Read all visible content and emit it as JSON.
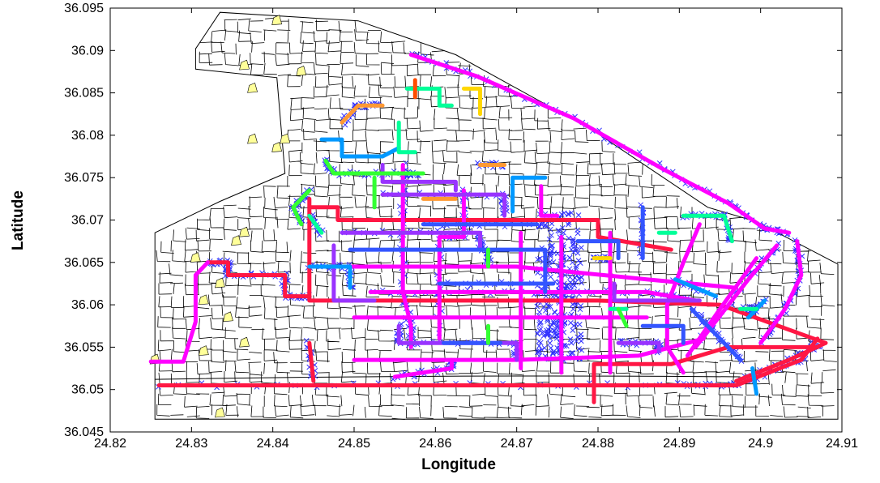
{
  "chart_data": {
    "type": "scatter",
    "title": "",
    "xlabel": "Longitude",
    "ylabel": "Latitude",
    "xlim": [
      24.82,
      24.91
    ],
    "ylim": [
      36.045,
      36.095
    ],
    "xticks": [
      "24.82",
      "24.83",
      "24.84",
      "24.85",
      "24.86",
      "24.87",
      "24.88",
      "24.89",
      "24.9",
      "24.91"
    ],
    "yticks": [
      "36.045",
      "36.05",
      "36.055",
      "36.06",
      "36.065",
      "36.07",
      "36.075",
      "36.08",
      "36.085",
      "36.09",
      "36.095"
    ],
    "grid": false,
    "legend": "none",
    "colors": {
      "street_network": "#000000",
      "building_patch": "#FFFF99",
      "gps_points": "#3333FF"
    },
    "series": [
      {
        "color": "#FF1744",
        "values": [
          [
            24.826,
            36.0505
          ],
          [
            24.86,
            36.0505
          ],
          [
            24.89,
            36.0505
          ],
          [
            24.897,
            36.0505
          ],
          [
            24.905,
            36.0535
          ],
          [
            24.907,
            36.056
          ]
        ]
      },
      {
        "color": "#FF1744",
        "values": [
          [
            24.8445,
            36.0725
          ],
          [
            24.8445,
            36.0605
          ],
          [
            24.86,
            36.0605
          ],
          [
            24.88,
            36.0605
          ],
          [
            24.895,
            36.06
          ],
          [
            24.908,
            36.0555
          ]
        ]
      },
      {
        "color": "#FF1744",
        "values": [
          [
            24.8445,
            36.061
          ],
          [
            24.8415,
            36.061
          ],
          [
            24.8415,
            36.0635
          ],
          [
            24.8345,
            36.0635
          ],
          [
            24.8345,
            36.065
          ],
          [
            24.832,
            36.065
          ]
        ]
      },
      {
        "color": "#FF1744",
        "values": [
          [
            24.8445,
            36.0715
          ],
          [
            24.848,
            36.0715
          ],
          [
            24.848,
            36.07
          ],
          [
            24.88,
            36.07
          ],
          [
            24.88,
            36.068
          ],
          [
            24.889,
            36.0665
          ]
        ]
      },
      {
        "color": "#FF1744",
        "values": [
          [
            24.8445,
            36.0555
          ],
          [
            24.845,
            36.051
          ]
        ]
      },
      {
        "color": "#FF1744",
        "values": [
          [
            24.8795,
            36.0485
          ],
          [
            24.8795,
            36.053
          ],
          [
            24.889,
            36.053
          ],
          [
            24.896,
            36.055
          ],
          [
            24.907,
            36.055
          ]
        ]
      },
      {
        "color": "#FF1744",
        "values": [
          [
            24.897,
            36.051
          ],
          [
            24.9035,
            36.0535
          ],
          [
            24.908,
            36.0555
          ]
        ]
      },
      {
        "color": "#FF00FF",
        "values": [
          [
            24.825,
            36.0533
          ],
          [
            24.829,
            36.0533
          ],
          [
            24.8305,
            36.058
          ],
          [
            24.8305,
            36.0635
          ],
          [
            24.832,
            36.065
          ]
        ]
      },
      {
        "color": "#FF00FF",
        "values": [
          [
            24.857,
            36.0895
          ],
          [
            24.865,
            36.087
          ],
          [
            24.877,
            36.082
          ],
          [
            24.888,
            36.076
          ],
          [
            24.896,
            36.072
          ],
          [
            24.9005,
            36.069
          ],
          [
            24.9035,
            36.0685
          ]
        ]
      },
      {
        "color": "#FF00FF",
        "values": [
          [
            24.85,
            36.0535
          ],
          [
            24.87,
            36.0535
          ],
          [
            24.885,
            36.054
          ],
          [
            24.893,
            36.056
          ]
        ]
      },
      {
        "color": "#FF00FF",
        "values": [
          [
            24.855,
            36.0515
          ],
          [
            24.862,
            36.0525
          ],
          [
            24.862,
            36.0535
          ]
        ]
      },
      {
        "color": "#FF00FF",
        "values": [
          [
            24.845,
            36.0645
          ],
          [
            24.858,
            36.0645
          ],
          [
            24.87,
            36.0645
          ],
          [
            24.886,
            36.063
          ],
          [
            24.897,
            36.062
          ]
        ]
      },
      {
        "color": "#FF00FF",
        "values": [
          [
            24.852,
            36.0615
          ],
          [
            24.871,
            36.0615
          ],
          [
            24.886,
            36.0615
          ],
          [
            24.892,
            36.0605
          ]
        ]
      },
      {
        "color": "#FF00FF",
        "values": [
          [
            24.85,
            36.0585
          ],
          [
            24.87,
            36.0585
          ],
          [
            24.88,
            36.0585
          ],
          [
            24.886,
            36.0585
          ]
        ]
      },
      {
        "color": "#FF00FF",
        "values": [
          [
            24.856,
            36.0765
          ],
          [
            24.856,
            36.07
          ],
          [
            24.856,
            36.0615
          ],
          [
            24.857,
            36.0575
          ],
          [
            24.857,
            36.055
          ]
        ]
      },
      {
        "color": "#FF00FF",
        "values": [
          [
            24.8705,
            36.0685
          ],
          [
            24.8705,
            36.0525
          ]
        ]
      },
      {
        "color": "#FF00FF",
        "values": [
          [
            24.8755,
            36.068
          ],
          [
            24.8755,
            36.052
          ]
        ]
      },
      {
        "color": "#FF00FF",
        "values": [
          [
            24.8815,
            36.0685
          ],
          [
            24.8815,
            36.052
          ]
        ]
      },
      {
        "color": "#FF00FF",
        "values": [
          [
            24.8635,
            36.0735
          ],
          [
            24.8635,
            36.068
          ],
          [
            24.8605,
            36.068
          ],
          [
            24.8605,
            36.056
          ]
        ]
      },
      {
        "color": "#FF00FF",
        "values": [
          [
            24.8925,
            36.0695
          ],
          [
            24.8905,
            36.065
          ],
          [
            24.8885,
            36.06
          ],
          [
            24.8885,
            36.055
          ],
          [
            24.8905,
            36.052
          ]
        ]
      },
      {
        "color": "#FF00FF",
        "values": [
          [
            24.902,
            36.067
          ],
          [
            24.8985,
            36.063
          ],
          [
            24.892,
            36.055
          ]
        ]
      },
      {
        "color": "#FF00FF",
        "values": [
          [
            24.8995,
            36.0655
          ],
          [
            24.895,
            36.0595
          ],
          [
            24.891,
            36.054
          ]
        ]
      },
      {
        "color": "#FF00FF",
        "values": [
          [
            24.9045,
            36.0675
          ],
          [
            24.905,
            36.0635
          ],
          [
            24.903,
            36.0595
          ],
          [
            24.9,
            36.0555
          ]
        ]
      },
      {
        "color": "#FF00FF",
        "values": [
          [
            24.873,
            36.074
          ],
          [
            24.873,
            36.0705
          ],
          [
            24.875,
            36.0705
          ]
        ]
      },
      {
        "color": "#9933FF",
        "values": [
          [
            24.8535,
            36.073
          ],
          [
            24.8685,
            36.073
          ],
          [
            24.8685,
            36.0705
          ]
        ]
      },
      {
        "color": "#9933FF",
        "values": [
          [
            24.8475,
            36.067
          ],
          [
            24.8475,
            36.0605
          ],
          [
            24.8525,
            36.0605
          ]
        ]
      },
      {
        "color": "#9933FF",
        "values": [
          [
            24.8485,
            36.0685
          ],
          [
            24.8655,
            36.0685
          ],
          [
            24.8655,
            36.0665
          ]
        ]
      },
      {
        "color": "#9933FF",
        "values": [
          [
            24.8535,
            36.0765
          ],
          [
            24.8535,
            36.0745
          ],
          [
            24.8625,
            36.0745
          ],
          [
            24.8625,
            36.0735
          ]
        ]
      },
      {
        "color": "#9933FF",
        "values": [
          [
            24.8555,
            36.0575
          ],
          [
            24.8555,
            36.0555
          ],
          [
            24.87,
            36.0555
          ],
          [
            24.87,
            36.0535
          ]
        ]
      },
      {
        "color": "#9933FF",
        "values": [
          [
            24.882,
            36.0625
          ],
          [
            24.882,
            36.0605
          ],
          [
            24.8925,
            36.0605
          ]
        ]
      },
      {
        "color": "#9933FF",
        "values": [
          [
            24.8825,
            36.0555
          ],
          [
            24.8875,
            36.0555
          ],
          [
            24.8875,
            36.0545
          ]
        ]
      },
      {
        "color": "#3355FF",
        "values": [
          [
            24.8495,
            36.0665
          ],
          [
            24.8735,
            36.0665
          ],
          [
            24.8735,
            36.0615
          ]
        ]
      },
      {
        "color": "#3355FF",
        "values": [
          [
            24.8605,
            36.0625
          ],
          [
            24.8745,
            36.0625
          ]
        ]
      },
      {
        "color": "#3355FF",
        "values": [
          [
            24.8775,
            36.0675
          ],
          [
            24.8825,
            36.0675
          ],
          [
            24.8825,
            36.0655
          ]
        ]
      },
      {
        "color": "#3355FF",
        "values": [
          [
            24.8855,
            36.0715
          ],
          [
            24.8855,
            36.0655
          ]
        ]
      },
      {
        "color": "#3355FF",
        "values": [
          [
            24.8855,
            36.0575
          ],
          [
            24.8905,
            36.0575
          ],
          [
            24.8905,
            36.0555
          ]
        ]
      },
      {
        "color": "#3355FF",
        "values": [
          [
            24.8915,
            36.0595
          ],
          [
            24.8955,
            36.0555
          ],
          [
            24.8975,
            36.0535
          ]
        ]
      },
      {
        "color": "#3355FF",
        "values": [
          [
            24.861,
            36.0555
          ],
          [
            24.868,
            36.0555
          ]
        ]
      },
      {
        "color": "#3355FF",
        "values": [
          [
            24.8585,
            36.0695
          ],
          [
            24.8725,
            36.0695
          ]
        ]
      },
      {
        "color": "#0099FF",
        "values": [
          [
            24.846,
            36.0795
          ],
          [
            24.8485,
            36.0795
          ],
          [
            24.8485,
            36.0775
          ],
          [
            24.8535,
            36.0775
          ],
          [
            24.8555,
            36.0785
          ]
        ]
      },
      {
        "color": "#0099FF",
        "values": [
          [
            24.8445,
            36.0645
          ],
          [
            24.8495,
            36.0645
          ],
          [
            24.8495,
            36.062
          ]
        ]
      },
      {
        "color": "#0099FF",
        "values": [
          [
            24.8695,
            36.071
          ],
          [
            24.8695,
            36.075
          ],
          [
            24.8735,
            36.075
          ]
        ]
      },
      {
        "color": "#0099FF",
        "values": [
          [
            24.8895,
            36.063
          ],
          [
            24.8945,
            36.061
          ]
        ]
      },
      {
        "color": "#0099FF",
        "values": [
          [
            24.899,
            36.0525
          ],
          [
            24.8995,
            36.0495
          ]
        ]
      },
      {
        "color": "#0099FF",
        "values": [
          [
            24.9005,
            36.0605
          ],
          [
            24.8985,
            36.0585
          ]
        ]
      },
      {
        "color": "#00FF99",
        "values": [
          [
            24.8565,
            36.0855
          ],
          [
            24.8605,
            36.0855
          ],
          [
            24.8605,
            36.0835
          ],
          [
            24.862,
            36.0835
          ]
        ]
      },
      {
        "color": "#00FF99",
        "values": [
          [
            24.846,
            36.0685
          ],
          [
            24.8445,
            36.0705
          ]
        ]
      },
      {
        "color": "#00FF99",
        "values": [
          [
            24.8875,
            36.0685
          ],
          [
            24.8895,
            36.0685
          ]
        ]
      },
      {
        "color": "#00FF99",
        "values": [
          [
            24.8905,
            36.0705
          ],
          [
            24.8955,
            36.0705
          ],
          [
            24.8965,
            36.0675
          ]
        ]
      },
      {
        "color": "#00FF99",
        "values": [
          [
            24.8815,
            36.0595
          ],
          [
            24.8835,
            36.0595
          ]
        ]
      },
      {
        "color": "#00FF99",
        "values": [
          [
            24.8975,
            36.0595
          ],
          [
            24.8995,
            36.0595
          ]
        ]
      },
      {
        "color": "#00FF99",
        "values": [
          [
            24.8555,
            36.0815
          ],
          [
            24.8555,
            36.078
          ],
          [
            24.8575,
            36.078
          ]
        ]
      },
      {
        "color": "#33FF33",
        "values": [
          [
            24.8465,
            36.077
          ],
          [
            24.8475,
            36.0755
          ],
          [
            24.8555,
            36.0755
          ],
          [
            24.8585,
            36.0755
          ]
        ]
      },
      {
        "color": "#33FF33",
        "values": [
          [
            24.8525,
            36.075
          ],
          [
            24.8525,
            36.0715
          ]
        ]
      },
      {
        "color": "#33FF33",
        "values": [
          [
            24.8445,
            36.0735
          ],
          [
            24.8425,
            36.0715
          ],
          [
            24.8435,
            36.0695
          ]
        ]
      },
      {
        "color": "#33FF33",
        "values": [
          [
            24.8825,
            36.0595
          ],
          [
            24.8835,
            36.0575
          ]
        ]
      },
      {
        "color": "#33FF33",
        "values": [
          [
            24.8665,
            36.0665
          ],
          [
            24.8665,
            36.0645
          ]
        ]
      },
      {
        "color": "#33FF33",
        "values": [
          [
            24.8665,
            36.0575
          ],
          [
            24.8665,
            36.0555
          ]
        ]
      },
      {
        "color": "#FF9933",
        "values": [
          [
            24.8485,
            36.0815
          ],
          [
            24.8505,
            36.0835
          ],
          [
            24.8535,
            36.0835
          ]
        ]
      },
      {
        "color": "#FF9933",
        "values": [
          [
            24.8585,
            36.0725
          ],
          [
            24.8625,
            36.0725
          ]
        ]
      },
      {
        "color": "#FF9933",
        "values": [
          [
            24.8655,
            36.0765
          ],
          [
            24.8685,
            36.0765
          ]
        ]
      },
      {
        "color": "#FFD700",
        "values": [
          [
            24.8635,
            36.0855
          ],
          [
            24.8655,
            36.0855
          ],
          [
            24.8655,
            36.0825
          ]
        ]
      },
      {
        "color": "#FFD700",
        "values": [
          [
            24.8795,
            36.0655
          ],
          [
            24.8815,
            36.0655
          ]
        ]
      },
      {
        "color": "#FF4D00",
        "values": [
          [
            24.8575,
            36.0865
          ],
          [
            24.8575,
            36.0845
          ]
        ]
      }
    ]
  }
}
